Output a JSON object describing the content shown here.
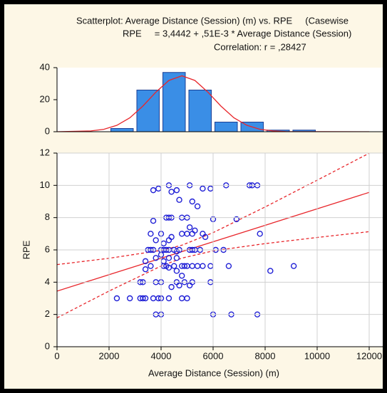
{
  "chart_data": [
    {
      "type": "histogram",
      "bins": [
        2000,
        3000,
        4000,
        5000,
        6000,
        7000,
        8000,
        9000,
        10000
      ],
      "counts": [
        2,
        26,
        37,
        26,
        6,
        6,
        1,
        1
      ],
      "color": "#3a8ee6",
      "edge_color": "#1b3f95",
      "xlim": [
        0,
        12000
      ],
      "ylim": [
        0,
        40
      ],
      "yticks": [
        0,
        20,
        40
      ],
      "normal_fit": {
        "color": "#e8262b",
        "x": [
          0,
          1300,
          1800,
          2300,
          2800,
          3300,
          3800,
          4300,
          4800,
          5300,
          5800,
          6300,
          6800,
          7300,
          7800,
          8300,
          8800,
          12000
        ],
        "values": [
          0,
          0.5,
          1.5,
          4.0,
          8.7,
          16.0,
          24.7,
          32.0,
          34.9,
          32.0,
          24.7,
          16.0,
          8.7,
          4.0,
          1.5,
          0.5,
          0.1,
          0
        ]
      }
    },
    {
      "type": "scatter",
      "title_lines": [
        "Scatterplot: Average Distance (Session) (m) vs. RPE     (Casewise",
        "RPE     = 3,4442 + ,51E-3 * Average Distance (Session)",
        "Correlation: r = ,28427"
      ],
      "xlabel": "Average Distance (Session) (m)",
      "ylabel": "RPE",
      "color": "#1f1fd6",
      "grid": true,
      "xlim": [
        0,
        12000
      ],
      "xticks": [
        0,
        2000,
        4000,
        6000,
        8000,
        10000,
        12000
      ],
      "ylim": [
        0,
        12
      ],
      "yticks": [
        0,
        2,
        4,
        6,
        8,
        10,
        12
      ],
      "x": [
        3700,
        3900,
        4300,
        4400,
        4600,
        5100,
        5600,
        5900,
        6500,
        7400,
        7500,
        7700,
        4700,
        5200,
        5400,
        4400,
        4200,
        4300,
        4800,
        5000,
        3700,
        6000,
        6900,
        3600,
        4000,
        4400,
        4800,
        5000,
        5200,
        5600,
        5100,
        5700,
        7800,
        5300,
        3500,
        3600,
        3700,
        4000,
        4100,
        4200,
        4300,
        4500,
        4700,
        5100,
        5200,
        5300,
        5500,
        6100,
        6400,
        4100,
        4300,
        3800,
        4600,
        3800,
        4000,
        4300,
        4600,
        3400,
        4100,
        3600,
        4100,
        4200,
        4300,
        4500,
        4800,
        4900,
        5000,
        5200,
        5400,
        5600,
        5900,
        6600,
        9100,
        3400,
        8200,
        4600,
        4800,
        3200,
        3300,
        3800,
        4000,
        4600,
        4900,
        5200,
        5900,
        4700,
        5100,
        4400,
        2300,
        2800,
        3200,
        3300,
        3400,
        3700,
        3900,
        4000,
        4300,
        4800,
        5000,
        3800,
        4000,
        6000,
        6700,
        7700
      ],
      "values": [
        9.7,
        9.8,
        10,
        9.6,
        9.7,
        10,
        9.8,
        9.8,
        10,
        10,
        10,
        10,
        9.1,
        9.0,
        8.7,
        8,
        8,
        8,
        8,
        8,
        7.8,
        7.9,
        7.9,
        7,
        7,
        6.8,
        7,
        7,
        7,
        7,
        7.4,
        6.8,
        7,
        7.2,
        6,
        6,
        6,
        6,
        6,
        6,
        6,
        6,
        6,
        6,
        6,
        6,
        6,
        6,
        6,
        6.4,
        6.6,
        6.6,
        5.9,
        5.5,
        5.7,
        5.5,
        5.5,
        5.3,
        5.3,
        5,
        5,
        5,
        4.9,
        5,
        5,
        5,
        5,
        5,
        5,
        5,
        5,
        5,
        5,
        4.8,
        4.7,
        4.7,
        4.4,
        4,
        4,
        4,
        4,
        4,
        4,
        4,
        4,
        3.8,
        3.8,
        3.7,
        3,
        3,
        3,
        3,
        3,
        3,
        3,
        3,
        3,
        3,
        3,
        2,
        2,
        2,
        2,
        2
      ],
      "fit": {
        "intercept": 3.4442,
        "slope": 0.00051,
        "color": "#e8262b"
      },
      "confidence_band": {
        "color": "#e8262b",
        "x": [
          0,
          2000,
          4000,
          4800,
          6000,
          8000,
          10000,
          12000
        ],
        "lower": [
          1.79,
          3.45,
          5.0,
          5.49,
          5.94,
          6.39,
          6.77,
          7.13
        ],
        "upper": [
          5.09,
          5.48,
          5.97,
          6.29,
          7.07,
          8.66,
          10.32,
          11.99
        ]
      }
    }
  ]
}
